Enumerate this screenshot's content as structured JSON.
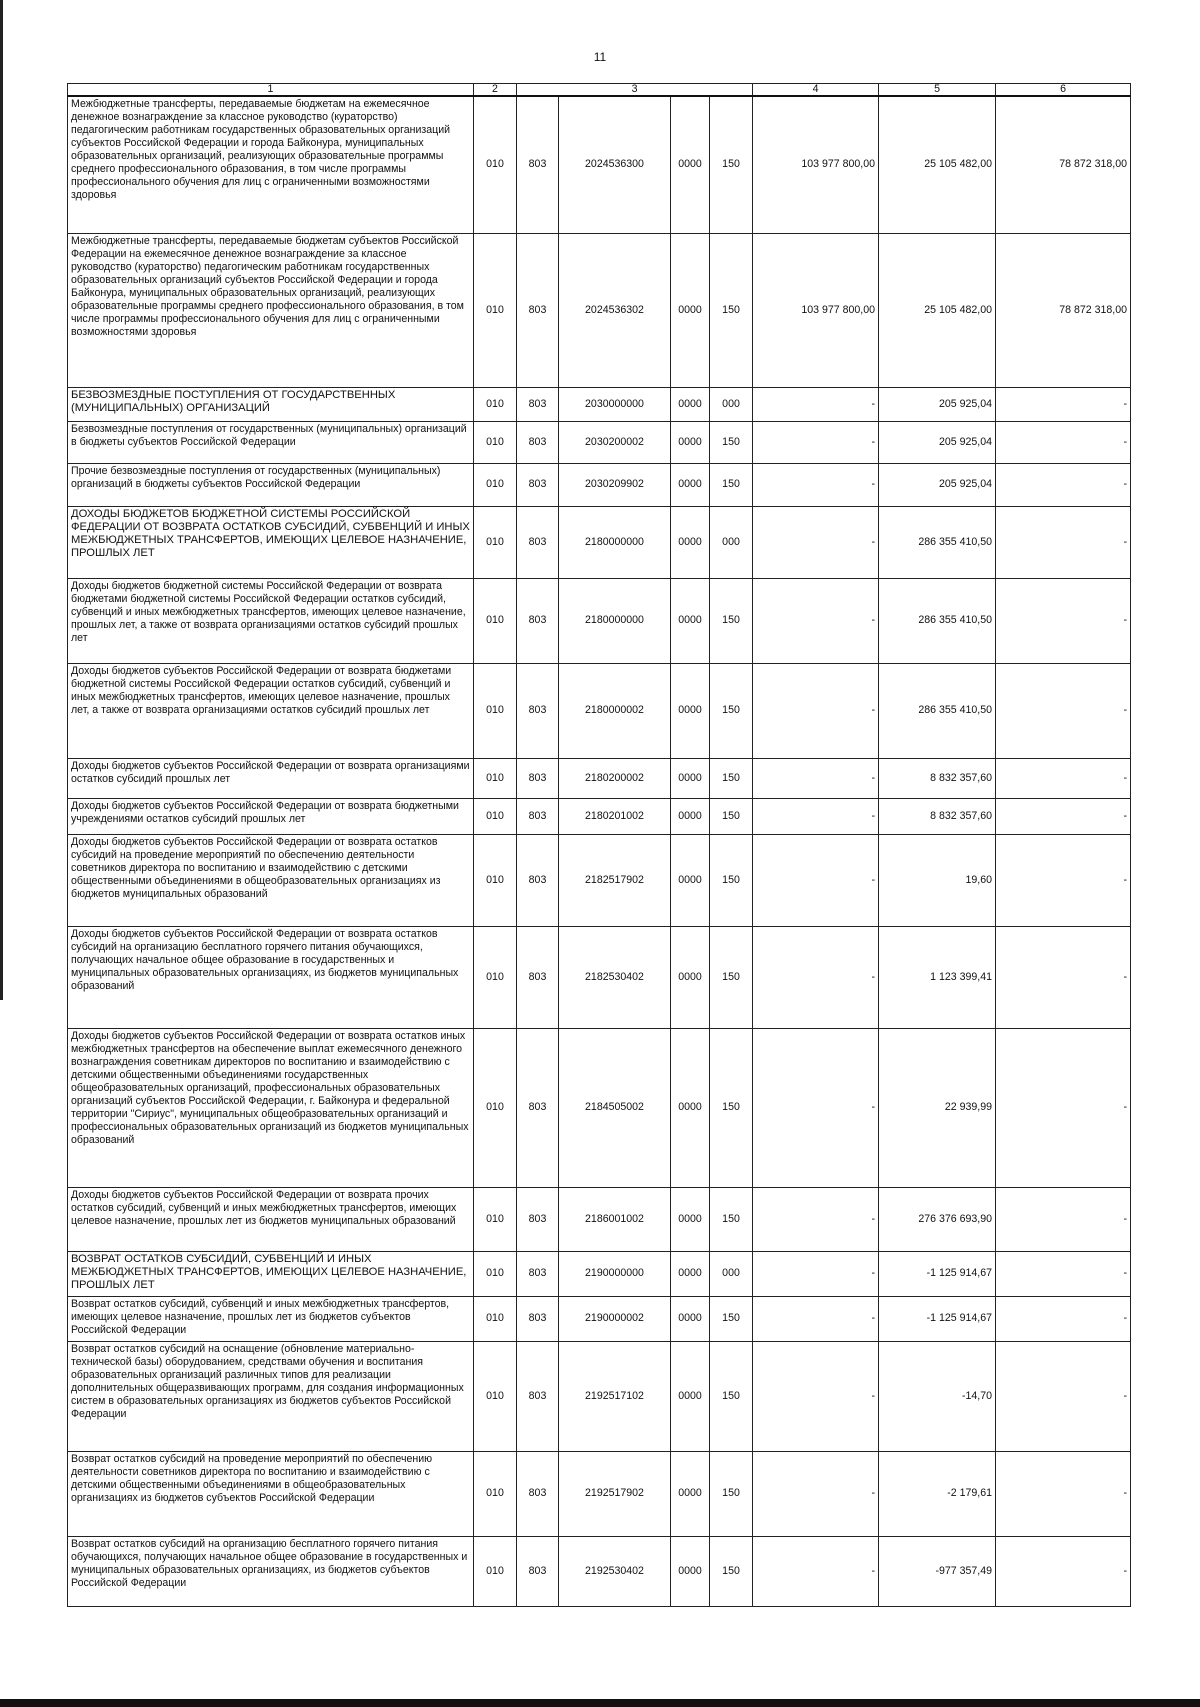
{
  "page_number": "11",
  "header": [
    "1",
    "2",
    "3",
    "4",
    "5",
    "6"
  ],
  "rows": [
    {
      "name": "Межбюджетные трансферты, передаваемые бюджетам на ежемесячное денежное вознаграждение за классное руководство (кураторство) педагогическим работникам государственных образовательных организаций субъектов Российской Федерации и города Байконура, муниципальных образовательных организаций, реализующих образовательные программы среднего профессионального образования, в том числе программы профессионального обучения для лиц с ограниченными возможностями здоровья",
      "a": "010",
      "b": "803",
      "code": "2024536300",
      "d": "0000",
      "e": "150",
      "c4": "103 977 800,00",
      "c5": "25 105 482,00",
      "c6": "78 872 318,00"
    },
    {
      "name": "Межбюджетные трансферты, передаваемые бюджетам субъектов Российской Федерации на ежемесячное денежное вознаграждение за классное руководство (кураторство) педагогическим работникам государственных образовательных организаций субъектов Российской Федерации и города Байконура, муниципальных образовательных организаций, реализующих образовательные программы среднего профессионального образования, в том числе программы профессионального обучения для лиц с ограниченными возможностями здоровья",
      "a": "010",
      "b": "803",
      "code": "2024536302",
      "d": "0000",
      "e": "150",
      "c4": "103 977 800,00",
      "c5": "25 105 482,00",
      "c6": "78 872 318,00"
    },
    {
      "name": "БЕЗВОЗМЕЗДНЫЕ ПОСТУПЛЕНИЯ ОТ ГОСУДАРСТВЕННЫХ (МУНИЦИПАЛЬНЫХ) ОРГАНИЗАЦИЙ",
      "upper": true,
      "a": "010",
      "b": "803",
      "code": "2030000000",
      "d": "0000",
      "e": "000",
      "c4": "-",
      "c5": "205 925,04",
      "c6": "-"
    },
    {
      "name": "Безвозмездные поступления от государственных (муниципальных) организаций в бюджеты субъектов Российской Федерации",
      "a": "010",
      "b": "803",
      "code": "2030200002",
      "d": "0000",
      "e": "150",
      "c4": "-",
      "c5": "205 925,04",
      "c6": "-"
    },
    {
      "name": "Прочие безвозмездные поступления от государственных (муниципальных) организаций в бюджеты субъектов Российской Федерации",
      "a": "010",
      "b": "803",
      "code": "2030209902",
      "d": "0000",
      "e": "150",
      "c4": "-",
      "c5": "205 925,04",
      "c6": "-"
    },
    {
      "name": "ДОХОДЫ БЮДЖЕТОВ БЮДЖЕТНОЙ СИСТЕМЫ РОССИЙСКОЙ ФЕДЕРАЦИИ ОТ ВОЗВРАТА ОСТАТКОВ СУБСИДИЙ, СУБВЕНЦИЙ И ИНЫХ МЕЖБЮДЖЕТНЫХ ТРАНСФЕРТОВ, ИМЕЮЩИХ ЦЕЛЕВОЕ НАЗНАЧЕНИЕ, ПРОШЛЫХ ЛЕТ",
      "upper": true,
      "a": "010",
      "b": "803",
      "code": "2180000000",
      "d": "0000",
      "e": "000",
      "c4": "-",
      "c5": "286 355 410,50",
      "c6": "-"
    },
    {
      "name": "Доходы бюджетов бюджетной системы Российской Федерации от возврата бюджетами бюджетной системы Российской Федерации остатков субсидий, субвенций и иных межбюджетных трансфертов, имеющих целевое назначение, прошлых лет, а также от возврата организациями остатков субсидий прошлых лет",
      "a": "010",
      "b": "803",
      "code": "2180000000",
      "d": "0000",
      "e": "150",
      "c4": "-",
      "c5": "286 355 410,50",
      "c6": "-"
    },
    {
      "name": "Доходы бюджетов субъектов Российской Федерации от возврата бюджетами бюджетной системы Российской Федерации остатков субсидий, субвенций и иных межбюджетных трансфертов, имеющих целевое назначение, прошлых лет, а также от возврата организациями остатков субсидий прошлых лет",
      "a": "010",
      "b": "803",
      "code": "2180000002",
      "d": "0000",
      "e": "150",
      "c4": "-",
      "c5": "286 355 410,50",
      "c6": "-"
    },
    {
      "name": "Доходы бюджетов субъектов Российской Федерации от возврата организациями остатков субсидий прошлых лет",
      "a": "010",
      "b": "803",
      "code": "2180200002",
      "d": "0000",
      "e": "150",
      "c4": "-",
      "c5": "8 832 357,60",
      "c6": "-"
    },
    {
      "name": "Доходы бюджетов субъектов Российской Федерации от возврата бюджетными учреждениями остатков субсидий прошлых лет",
      "a": "010",
      "b": "803",
      "code": "2180201002",
      "d": "0000",
      "e": "150",
      "c4": "-",
      "c5": "8 832 357,60",
      "c6": "-"
    },
    {
      "name": "Доходы бюджетов субъектов Российской Федерации от возврата остатков субсидий на проведение мероприятий по обеспечению деятельности советников директора по воспитанию и взаимодействию с детскими общественными объединениями в общеобразовательных организациях из бюджетов муниципальных образований",
      "a": "010",
      "b": "803",
      "code": "2182517902",
      "d": "0000",
      "e": "150",
      "c4": "-",
      "c5": "19,60",
      "c6": "-"
    },
    {
      "name": "Доходы бюджетов субъектов Российской Федерации от возврата остатков субсидий на организацию бесплатного горячего питания обучающихся, получающих начальное общее образование в государственных и муниципальных образовательных организациях, из бюджетов муниципальных образований",
      "a": "010",
      "b": "803",
      "code": "2182530402",
      "d": "0000",
      "e": "150",
      "c4": "-",
      "c5": "1 123 399,41",
      "c6": "-"
    },
    {
      "name": "Доходы бюджетов субъектов Российской Федерации от возврата остатков иных межбюджетных трансфертов на обеспечение выплат ежемесячного денежного вознаграждения советникам директоров по воспитанию и взаимодействию с детскими общественными объединениями государственных общеобразовательных организаций, профессиональных образовательных организаций субъектов Российской Федерации, г. Байконура и федеральной территории \"Сириус\", муниципальных общеобразовательных организаций и профессиональных образовательных организаций из бюджетов муниципальных образований",
      "a": "010",
      "b": "803",
      "code": "2184505002",
      "d": "0000",
      "e": "150",
      "c4": "-",
      "c5": "22 939,99",
      "c6": "-"
    },
    {
      "name": "Доходы бюджетов субъектов Российской Федерации от возврата прочих остатков субсидий, субвенций и иных межбюджетных трансфертов, имеющих целевое назначение, прошлых лет из бюджетов муниципальных образований",
      "a": "010",
      "b": "803",
      "code": "2186001002",
      "d": "0000",
      "e": "150",
      "c4": "-",
      "c5": "276 376 693,90",
      "c6": "-"
    },
    {
      "name": "ВОЗВРАТ ОСТАТКОВ СУБСИДИЙ, СУБВЕНЦИЙ И ИНЫХ МЕЖБЮДЖЕТНЫХ ТРАНСФЕРТОВ, ИМЕЮЩИХ ЦЕЛЕВОЕ НАЗНАЧЕНИЕ, ПРОШЛЫХ ЛЕТ",
      "upper": true,
      "a": "010",
      "b": "803",
      "code": "2190000000",
      "d": "0000",
      "e": "000",
      "c4": "-",
      "c5": "-1 125 914,67",
      "c6": "-"
    },
    {
      "name": "Возврат остатков субсидий, субвенций и иных межбюджетных трансфертов, имеющих целевое назначение, прошлых лет из бюджетов субъектов Российской Федерации",
      "a": "010",
      "b": "803",
      "code": "2190000002",
      "d": "0000",
      "e": "150",
      "c4": "-",
      "c5": "-1 125 914,67",
      "c6": "-"
    },
    {
      "name": "Возврат остатков субсидий на оснащение (обновление материально-технической базы) оборудованием, средствами обучения и воспитания образовательных организаций различных типов для реализации дополнительных общеразвивающих программ, для создания информационных систем в образовательных организациях из бюджетов субъектов Российской Федерации",
      "a": "010",
      "b": "803",
      "code": "2192517102",
      "d": "0000",
      "e": "150",
      "c4": "-",
      "c5": "-14,70",
      "c6": "-"
    },
    {
      "name": "Возврат остатков субсидий на проведение мероприятий по обеспечению деятельности советников директора по воспитанию и взаимодействию с детскими общественными объединениями в общеобразовательных организациях из бюджетов субъектов Российской Федерации",
      "a": "010",
      "b": "803",
      "code": "2192517902",
      "d": "0000",
      "e": "150",
      "c4": "-",
      "c5": "-2 179,61",
      "c6": "-"
    },
    {
      "name": "Возврат остатков субсидий на организацию бесплатного горячего питания обучающихся, получающих начальное общее образование в государственных и муниципальных образовательных организациях, из бюджетов субъектов Российской Федерации",
      "a": "010",
      "b": "803",
      "code": "2192530402",
      "d": "0000",
      "e": "150",
      "c4": "-",
      "c5": "-977 357,49",
      "c6": "-"
    }
  ]
}
